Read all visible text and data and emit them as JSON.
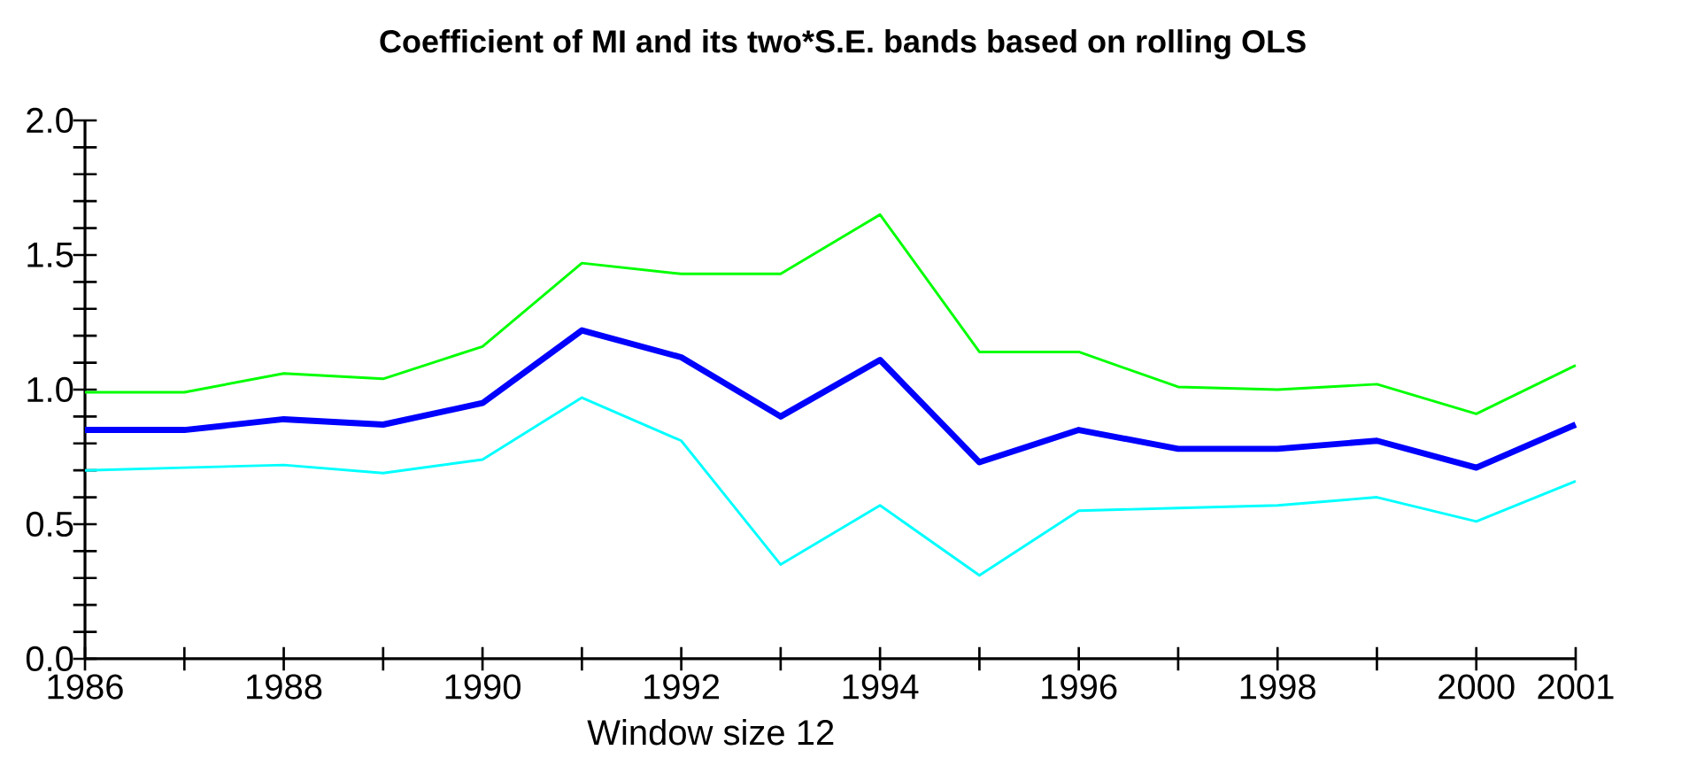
{
  "chart_data": {
    "type": "line",
    "title": "Coefficient of MI and its two*S.E. bands based on rolling OLS",
    "xlabel": "Window size 12",
    "x": [
      1986,
      1987,
      1988,
      1989,
      1990,
      1991,
      1992,
      1993,
      1994,
      1995,
      1996,
      1997,
      1998,
      1999,
      2000,
      2001
    ],
    "series": [
      {
        "color": "#00ff00",
        "values": [
          0.99,
          0.99,
          1.06,
          1.04,
          1.16,
          1.47,
          1.43,
          1.43,
          1.65,
          1.14,
          1.14,
          1.01,
          1.0,
          1.02,
          0.91,
          1.09
        ]
      },
      {
        "color": "#0000ff",
        "values": [
          0.85,
          0.85,
          0.89,
          0.87,
          0.95,
          1.22,
          1.12,
          0.9,
          1.11,
          0.73,
          0.85,
          0.78,
          0.78,
          0.81,
          0.71,
          0.87
        ]
      },
      {
        "color": "#00ffff",
        "values": [
          0.7,
          0.71,
          0.72,
          0.69,
          0.74,
          0.97,
          0.81,
          0.35,
          0.57,
          0.31,
          0.55,
          0.56,
          0.57,
          0.6,
          0.51,
          0.66
        ]
      }
    ],
    "xlim": [
      1986,
      2001
    ],
    "xticks": [
      1986,
      {
        "value": 1987,
        "label": null
      },
      1988,
      {
        "value": 1989,
        "label": null
      },
      1990,
      {
        "value": 1991,
        "label": null
      },
      1992,
      {
        "value": 1993,
        "label": null
      },
      1994,
      {
        "value": 1995,
        "label": null
      },
      1996,
      {
        "value": 1997,
        "label": null
      },
      1998,
      {
        "value": 1999,
        "label": null
      },
      2000,
      {
        "value": 2001,
        "label": "2001"
      }
    ],
    "ylim": [
      0,
      2
    ],
    "yticks": [
      {
        "value": 0,
        "label": "0.0"
      },
      {
        "value": 0.1,
        "label": null
      },
      {
        "value": 0.2,
        "label": null
      },
      {
        "value": 0.3,
        "label": null
      },
      {
        "value": 0.4,
        "label": null
      },
      {
        "value": 0.5,
        "label": "0.5"
      },
      {
        "value": 0.6,
        "label": null
      },
      {
        "value": 0.7,
        "label": null
      },
      {
        "value": 0.8,
        "label": null
      },
      {
        "value": 0.9,
        "label": null
      },
      {
        "value": 1.0,
        "label": "1.0"
      },
      {
        "value": 1.1,
        "label": null
      },
      {
        "value": 1.2,
        "label": null
      },
      {
        "value": 1.3,
        "label": null
      },
      {
        "value": 1.4,
        "label": null
      },
      {
        "value": 1.5,
        "label": "1.5"
      },
      {
        "value": 1.6,
        "label": null
      },
      {
        "value": 1.7,
        "label": null
      },
      {
        "value": 1.8,
        "label": null
      },
      {
        "value": 1.9,
        "label": null
      },
      {
        "value": 2.0,
        "label": "2.0"
      }
    ],
    "grid": false,
    "marker": "none",
    "line_style": "solid"
  }
}
